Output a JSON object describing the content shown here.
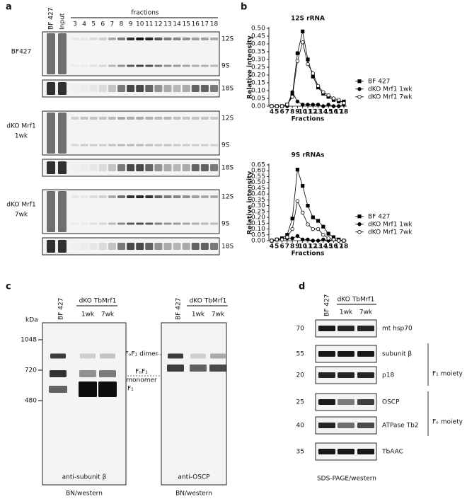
{
  "panel_a": {
    "label": "a",
    "lanes": [
      "BF 427",
      "Input"
    ],
    "fractions_title": "fractions",
    "fractions": [
      "3",
      "4",
      "5",
      "6",
      "7",
      "8",
      "9",
      "10",
      "11",
      "12",
      "13",
      "14",
      "15",
      "16",
      "17",
      "18"
    ],
    "groups": [
      {
        "name": [
          "BF427"
        ],
        "bands": [
          "12S",
          "9S",
          "18S"
        ]
      },
      {
        "name": [
          "dKO Mrf1",
          "1wk"
        ],
        "bands": [
          "12S",
          "9S",
          "18S"
        ]
      },
      {
        "name": [
          "dKO Mrf1",
          "7wk"
        ],
        "bands": [
          "12S",
          "9S",
          "18S"
        ]
      }
    ]
  },
  "panel_b": {
    "label": "b"
  },
  "chart_data": [
    {
      "type": "line",
      "title": "12S rRNA",
      "x_label": "Fractions",
      "y_label": "Relative intensity",
      "categories": [
        "4",
        "5",
        "6",
        "7",
        "8",
        "9",
        "10",
        "11",
        "12",
        "13",
        "14",
        "15",
        "16",
        "17",
        "18"
      ],
      "series": [
        {
          "name": "BF 427",
          "color": "#000000",
          "marker": "square",
          "values": [
            0,
            0,
            0,
            0.01,
            0.07,
            0.34,
            0.48,
            0.3,
            0.19,
            0.12,
            0.08,
            0.06,
            0.04,
            0.03,
            0.03
          ]
        },
        {
          "name": "dKO Mrf1 1wk",
          "color": "#000000",
          "marker": "circle",
          "values": [
            0,
            0,
            0,
            0,
            0.09,
            0.03,
            0.01,
            0.01,
            0.01,
            0.01,
            0,
            0.01,
            0,
            0,
            0.01
          ]
        },
        {
          "name": "dKO Mrf1 7wk",
          "color": "#000000",
          "marker": "open-circle",
          "values": [
            0,
            0,
            0,
            0.01,
            0.06,
            0.29,
            0.41,
            0.27,
            0.21,
            0.13,
            0.09,
            0.07,
            0.05,
            0.04,
            0.02
          ]
        }
      ],
      "ylim": [
        0,
        0.5
      ],
      "yticks": [
        {
          "value": 0,
          "label": "0.00"
        },
        {
          "value": 0.05,
          "label": "0.05"
        },
        {
          "value": 0.1,
          "label": "0.10"
        },
        {
          "value": 0.15,
          "label": "0.15"
        },
        {
          "value": 0.2,
          "label": "0.20"
        },
        {
          "value": 0.25,
          "label": "0.25"
        },
        {
          "value": 0.3,
          "label": "0.30"
        },
        {
          "value": 0.35,
          "label": "0.35"
        },
        {
          "value": 0.4,
          "label": "0.40"
        },
        {
          "value": 0.45,
          "label": "0.45"
        },
        {
          "value": 0.5,
          "label": "0.50"
        }
      ],
      "legend": "right"
    },
    {
      "type": "line",
      "title": "9S rRNAs",
      "x_label": "Fractions",
      "y_label": "Relative intensity",
      "categories": [
        "4",
        "5",
        "6",
        "7",
        "8",
        "9",
        "10",
        "11",
        "12",
        "13",
        "14",
        "15",
        "16",
        "17",
        "18"
      ],
      "series": [
        {
          "name": "BF 427",
          "color": "#000000",
          "marker": "square",
          "values": [
            0,
            0.01,
            0.02,
            0.05,
            0.19,
            0.61,
            0.47,
            0.3,
            0.2,
            0.17,
            0.12,
            0.06,
            0.03,
            0.01,
            0
          ]
        },
        {
          "name": "dKO Mrf1 1wk",
          "color": "#000000",
          "marker": "circle",
          "values": [
            0,
            0.01,
            0.02,
            0.02,
            0.02,
            0.04,
            0.01,
            0.01,
            0,
            0,
            0.01,
            0,
            0.01,
            0,
            0
          ]
        },
        {
          "name": "dKO Mrf1 7wk",
          "color": "#000000",
          "marker": "open-circle",
          "values": [
            0,
            0.01,
            0.01,
            0.03,
            0.1,
            0.34,
            0.24,
            0.14,
            0.1,
            0.1,
            0.05,
            0.02,
            0.01,
            0,
            0
          ]
        }
      ],
      "ylim": [
        0,
        0.65
      ],
      "yticks": [
        {
          "value": 0,
          "label": "0.00"
        },
        {
          "value": 0.05,
          "label": "0.05"
        },
        {
          "value": 0.1,
          "label": "0.10"
        },
        {
          "value": 0.15,
          "label": "0.15"
        },
        {
          "value": 0.2,
          "label": "0.20"
        },
        {
          "value": 0.25,
          "label": "0.25"
        },
        {
          "value": 0.3,
          "label": "0.30"
        },
        {
          "value": 0.35,
          "label": "0.35"
        },
        {
          "value": 0.4,
          "label": "0.40"
        },
        {
          "value": 0.45,
          "label": "0.45"
        },
        {
          "value": 0.5,
          "label": "0.50"
        },
        {
          "value": 0.55,
          "label": "0.55"
        },
        {
          "value": 0.6,
          "label": "0.60"
        },
        {
          "value": 0.65,
          "label": "0.65"
        }
      ],
      "legend": "right"
    }
  ],
  "panel_c": {
    "label": "c",
    "kda": "kDa",
    "markers": [
      "1048",
      "720",
      "480"
    ],
    "blots": [
      {
        "lane": "BF 427",
        "group": "dKO TbMrf1",
        "sub": [
          "1wk",
          "7wk"
        ],
        "antibody": "anti-subunit β",
        "method": "BN/western"
      },
      {
        "lane": "BF 427",
        "group": "dKO TbMrf1",
        "sub": [
          "1wk",
          "7wk"
        ],
        "antibody": "anti-OSCP",
        "method": "BN/western"
      }
    ],
    "annotations": [
      "FₒF₁ dimer",
      "FₒF₁",
      "monomer",
      "F₁"
    ]
  },
  "panel_d": {
    "label": "d",
    "lane": "BF 427",
    "group": "dKO TbMrf1",
    "sub": [
      "1wk",
      "7wk"
    ],
    "rows": [
      {
        "mw": "70",
        "name": "mt hsp70"
      },
      {
        "mw": "55",
        "name": "subunit β"
      },
      {
        "mw": "20",
        "name": "p18"
      },
      {
        "mw": "25",
        "name": "OSCP"
      },
      {
        "mw": "40",
        "name": "ATPase Tb2"
      },
      {
        "mw": "35",
        "name": "TbAAC"
      }
    ],
    "moieties": [
      "F₁ moiety",
      "Fₒ moiety"
    ],
    "method": "SDS-PAGE/western"
  }
}
